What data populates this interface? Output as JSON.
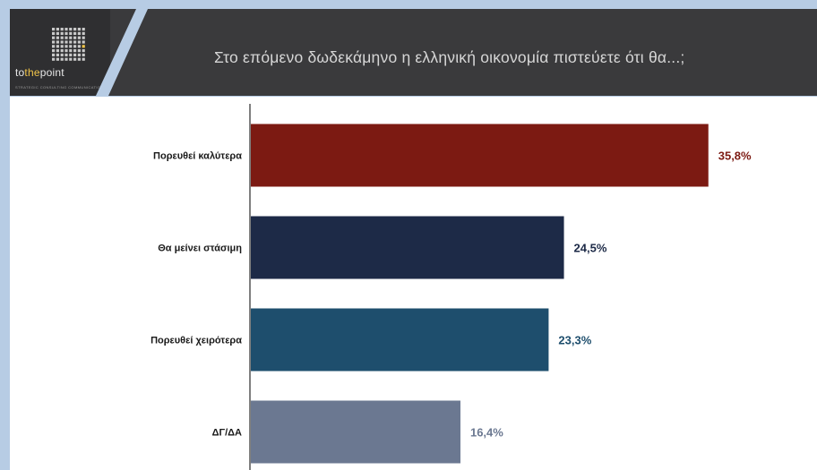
{
  "header": {
    "title": "Στο επόμενο δωδεκάμηνο η ελληνική οικονομία πιστεύετε ότι θα...;",
    "logo": {
      "word_prefix": "to",
      "word_highlight": "the",
      "word_suffix": "point",
      "tagline": "STRATEGIC CONSULTING COMMUNICATION",
      "highlight_color": "#f1c54a"
    }
  },
  "chart_data": {
    "type": "bar",
    "orientation": "horizontal",
    "categories": [
      "Πορευθεί καλύτερα",
      "Θα μείνει στάσιμη",
      "Πορευθεί χειρότερα",
      "ΔΓ/ΔΑ"
    ],
    "values": [
      35.8,
      24.5,
      23.3,
      16.4
    ],
    "value_labels": [
      "35,8%",
      "24,5%",
      "23,3%",
      "16,4%"
    ],
    "colors": [
      "#7c1a12",
      "#1d2a47",
      "#1e4e6d",
      "#6b7891"
    ],
    "xlim": [
      0,
      37.5
    ],
    "grid": false,
    "legend": "none"
  }
}
